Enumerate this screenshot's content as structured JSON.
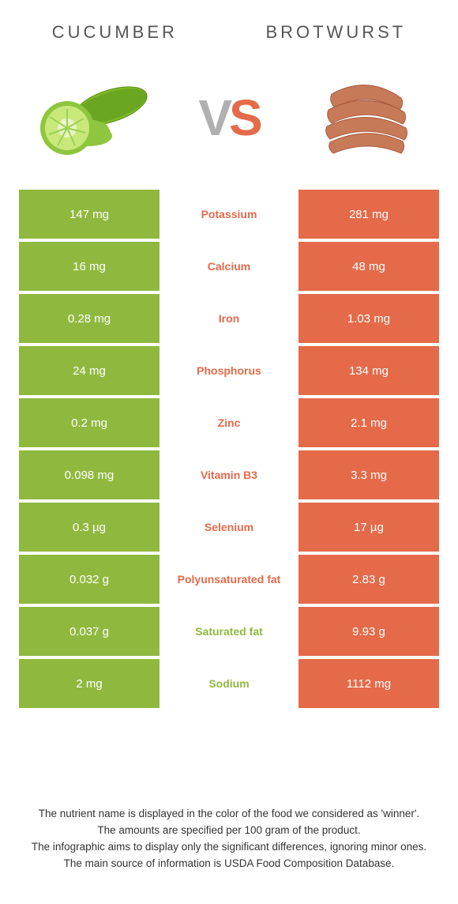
{
  "title_left": "CUCUMBER",
  "title_right": "BROTWURST",
  "vs_v": "V",
  "vs_s": "S",
  "colors": {
    "left": "#8fb93e",
    "right": "#e46a49",
    "mid_bg": "#ffffff",
    "row_gap_bg": "#ffffff"
  },
  "nutrients": [
    {
      "name": "Potassium",
      "left": "147 mg",
      "right": "281 mg",
      "winner": "right"
    },
    {
      "name": "Calcium",
      "left": "16 mg",
      "right": "48 mg",
      "winner": "right"
    },
    {
      "name": "Iron",
      "left": "0.28 mg",
      "right": "1.03 mg",
      "winner": "right"
    },
    {
      "name": "Phosphorus",
      "left": "24 mg",
      "right": "134 mg",
      "winner": "right"
    },
    {
      "name": "Zinc",
      "left": "0.2 mg",
      "right": "2.1 mg",
      "winner": "right"
    },
    {
      "name": "Vitamin B3",
      "left": "0.098 mg",
      "right": "3.3 mg",
      "winner": "right"
    },
    {
      "name": "Selenium",
      "left": "0.3 µg",
      "right": "17 µg",
      "winner": "right"
    },
    {
      "name": "Polyunsaturated fat",
      "left": "0.032 g",
      "right": "2.83 g",
      "winner": "right"
    },
    {
      "name": "Saturated fat",
      "left": "0.037 g",
      "right": "9.93 g",
      "winner": "left"
    },
    {
      "name": "Sodium",
      "left": "2 mg",
      "right": "1112 mg",
      "winner": "left"
    }
  ],
  "footer_lines": [
    "The nutrient name is displayed in the color of the food we considered as 'winner'.",
    "The amounts are specified per 100 gram of the product.",
    "The infographic aims to display only the significant differences, ignoring minor ones.",
    "The main source of information is USDA Food Composition Database."
  ],
  "icons": {
    "cucumber": {
      "body_fill": "#7fb92a",
      "slice_fill": "#c9e87a",
      "slice_rim": "#8ec63f",
      "slice_center": "#e8f5c4"
    },
    "brotwurst": {
      "fill": "#c77a57",
      "shade": "#a95a3e"
    }
  }
}
